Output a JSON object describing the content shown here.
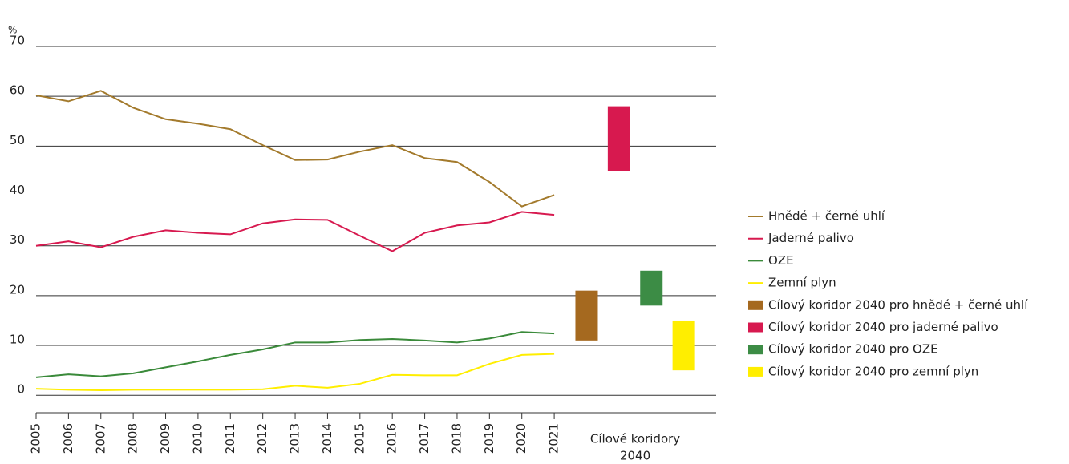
{
  "chart_data": {
    "type": "line",
    "y_label": "%",
    "x": [
      2005,
      2006,
      2007,
      2008,
      2009,
      2010,
      2011,
      2012,
      2013,
      2014,
      2015,
      2016,
      2017,
      2018,
      2019,
      2020,
      2021
    ],
    "xlim": [
      2005,
      2026
    ],
    "xticks": [
      2005,
      2006,
      2007,
      2008,
      2009,
      2010,
      2011,
      2012,
      2013,
      2014,
      2015,
      2016,
      2017,
      2018,
      2019,
      2020,
      2021
    ],
    "ylim": [
      -3.5,
      70
    ],
    "yticks": [
      0,
      10,
      20,
      30,
      40,
      50,
      60,
      70
    ],
    "grid": true,
    "legend": "right",
    "series": [
      {
        "name": "Hnědé + černé uhlí",
        "color": "#a37a2c",
        "values": [
          60.2,
          59,
          61.1,
          57.7,
          55.4,
          54.5,
          53.4,
          50.2,
          47.2,
          47.3,
          48.9,
          50.2,
          47.6,
          46.8,
          42.8,
          37.9,
          40.2
        ]
      },
      {
        "name": "Jaderné palivo",
        "color": "#d7194f",
        "values": [
          30,
          30.9,
          29.7,
          31.8,
          33.1,
          32.6,
          32.3,
          34.5,
          35.3,
          35.2,
          32,
          28.9,
          32.6,
          34.1,
          34.7,
          36.8,
          36.2
        ]
      },
      {
        "name": "OZE",
        "color": "#3a8a3a",
        "values": [
          3.6,
          4.2,
          3.8,
          4.4,
          5.6,
          6.8,
          8.1,
          9.2,
          10.6,
          10.6,
          11.1,
          11.3,
          11,
          10.6,
          11.4,
          12.7,
          12.4
        ]
      },
      {
        "name": "Zemní plyn",
        "color": "#ffee00",
        "values": [
          1.3,
          1.1,
          1,
          1.1,
          1.1,
          1.1,
          1.1,
          1.2,
          1.9,
          1.5,
          2.3,
          4.1,
          4,
          4,
          6.3,
          8.1,
          8.3
        ]
      }
    ],
    "corridor_label": [
      "Cílové koridory",
      "2040"
    ],
    "corridors": [
      {
        "name": "Cílový koridor 2040 pro hnědé + černé uhlí",
        "color": "#a5691f",
        "low": 11,
        "high": 21
      },
      {
        "name": "Cílový koridor 2040 pro jaderné palivo",
        "color": "#d7194f",
        "low": 45,
        "high": 58
      },
      {
        "name": "Cílový koridor 2040 pro OZE",
        "color": "#3c8c45",
        "low": 18,
        "high": 25
      },
      {
        "name": "Cílový koridor 2040 pro zemní plyn",
        "color": "#ffee00",
        "low": 5,
        "high": 15
      }
    ]
  }
}
